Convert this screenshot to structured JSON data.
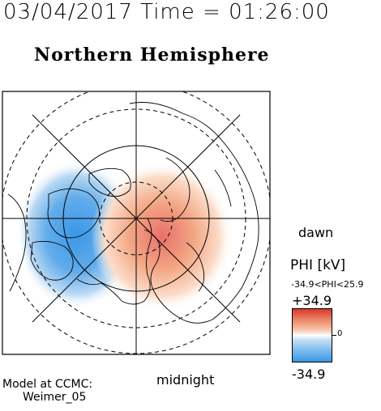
{
  "header": {
    "timestamp": "03/04/2017 Time = 01:26:00",
    "title": "Northern Hemisphere"
  },
  "map": {
    "projection": "polar",
    "pole": "north",
    "potential_cells": [
      {
        "sign": "negative",
        "color": "#3a97e8",
        "side": "dusk",
        "peak_kV": -34.9
      },
      {
        "sign": "positive",
        "color": "#e8706a",
        "side": "dawn",
        "peak_kV": 25.9
      }
    ]
  },
  "orientation": {
    "dawn": "dawn",
    "midnight": "midnight"
  },
  "colorbar": {
    "title": "PHI [kV]",
    "range_text": "-34.9<PHI<25.9",
    "max_label": "+34.9",
    "zero_label": "0",
    "min_label": "-34.9",
    "colors": {
      "high": "#d83a2a",
      "mid": "#ffffff",
      "low": "#3a97e8"
    }
  },
  "credit": {
    "line1": "Model at CCMC:",
    "line2": "Weimer_05"
  }
}
